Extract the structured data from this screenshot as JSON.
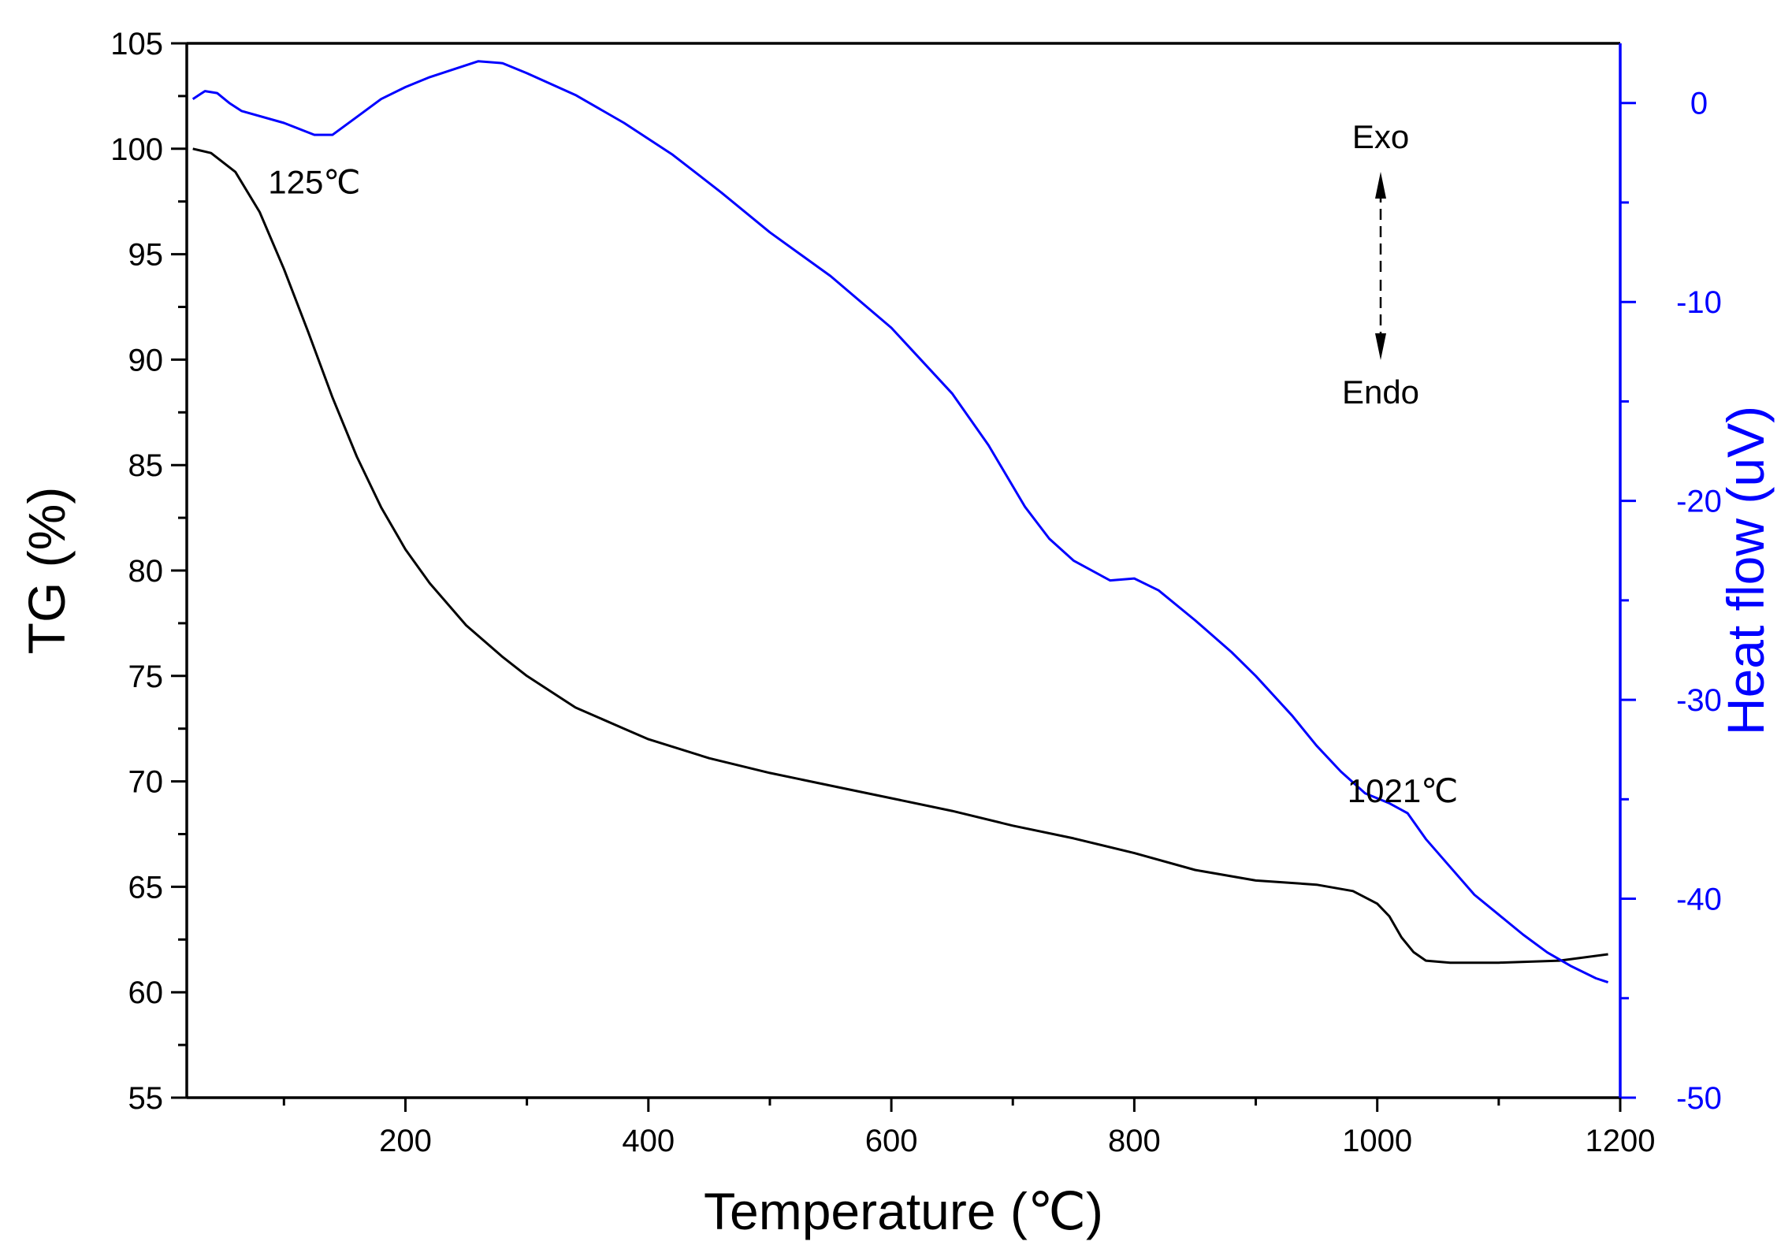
{
  "chart_data": {
    "type": "line",
    "x": {
      "label": "Temperature (℃)",
      "range": [
        20,
        1200
      ],
      "ticks": [
        200,
        400,
        600,
        800,
        1000,
        1200
      ],
      "minor_ticks": [
        100,
        300,
        500,
        700,
        900,
        1100
      ]
    },
    "y_left": {
      "label": "TG (%)",
      "range": [
        55,
        105
      ],
      "ticks": [
        55,
        60,
        65,
        70,
        75,
        80,
        85,
        90,
        95,
        100,
        105
      ]
    },
    "y_right": {
      "label": "Heat flow (uV)",
      "range": [
        -50,
        3
      ],
      "ticks": [
        -50,
        -40,
        -30,
        -20,
        -10,
        0
      ]
    },
    "grid": false,
    "series": [
      {
        "name": "TG",
        "axis": "left",
        "color": "#000000",
        "points": [
          [
            25,
            100
          ],
          [
            40,
            99.8
          ],
          [
            60,
            98.9
          ],
          [
            80,
            97
          ],
          [
            100,
            94.3
          ],
          [
            120,
            91.3
          ],
          [
            140,
            88.2
          ],
          [
            160,
            85.4
          ],
          [
            180,
            83
          ],
          [
            200,
            81
          ],
          [
            220,
            79.4
          ],
          [
            250,
            77.4
          ],
          [
            280,
            75.9
          ],
          [
            300,
            75
          ],
          [
            340,
            73.5
          ],
          [
            380,
            72.5
          ],
          [
            400,
            72
          ],
          [
            450,
            71.1
          ],
          [
            500,
            70.4
          ],
          [
            550,
            69.8
          ],
          [
            600,
            69.2
          ],
          [
            650,
            68.6
          ],
          [
            700,
            67.9
          ],
          [
            750,
            67.3
          ],
          [
            800,
            66.6
          ],
          [
            850,
            65.8
          ],
          [
            900,
            65.3
          ],
          [
            950,
            65.1
          ],
          [
            980,
            64.8
          ],
          [
            1000,
            64.2
          ],
          [
            1010,
            63.6
          ],
          [
            1020,
            62.6
          ],
          [
            1030,
            61.9
          ],
          [
            1040,
            61.5
          ],
          [
            1060,
            61.4
          ],
          [
            1100,
            61.4
          ],
          [
            1150,
            61.5
          ],
          [
            1190,
            61.8
          ]
        ]
      },
      {
        "name": "Heat flow",
        "axis": "right",
        "color": "#0000ff",
        "points": [
          [
            25,
            0.2
          ],
          [
            30,
            0.4
          ],
          [
            35,
            0.6
          ],
          [
            45,
            0.5
          ],
          [
            55,
            0
          ],
          [
            65,
            -0.4
          ],
          [
            100,
            -1
          ],
          [
            125,
            -1.6
          ],
          [
            140,
            -1.6
          ],
          [
            160,
            -0.7
          ],
          [
            180,
            0.2
          ],
          [
            200,
            0.8
          ],
          [
            220,
            1.3
          ],
          [
            240,
            1.7
          ],
          [
            260,
            2.1
          ],
          [
            280,
            2
          ],
          [
            300,
            1.5
          ],
          [
            340,
            0.4
          ],
          [
            380,
            -1
          ],
          [
            420,
            -2.6
          ],
          [
            460,
            -4.5
          ],
          [
            500,
            -6.5
          ],
          [
            550,
            -8.7
          ],
          [
            600,
            -11.3
          ],
          [
            650,
            -14.6
          ],
          [
            680,
            -17.2
          ],
          [
            710,
            -20.3
          ],
          [
            730,
            -21.9
          ],
          [
            750,
            -23
          ],
          [
            780,
            -24
          ],
          [
            800,
            -23.9
          ],
          [
            820,
            -24.5
          ],
          [
            850,
            -26
          ],
          [
            880,
            -27.6
          ],
          [
            900,
            -28.8
          ],
          [
            930,
            -30.8
          ],
          [
            950,
            -32.3
          ],
          [
            970,
            -33.6
          ],
          [
            990,
            -34.7
          ],
          [
            1010,
            -35.2
          ],
          [
            1025,
            -35.7
          ],
          [
            1040,
            -37
          ],
          [
            1060,
            -38.4
          ],
          [
            1080,
            -39.8
          ],
          [
            1100,
            -40.8
          ],
          [
            1120,
            -41.8
          ],
          [
            1140,
            -42.7
          ],
          [
            1160,
            -43.4
          ],
          [
            1180,
            -44
          ],
          [
            1190,
            -44.2
          ]
        ]
      }
    ],
    "annotations": [
      {
        "text": "125℃",
        "at": [
          125,
          -4.0
        ],
        "axis": "right"
      },
      {
        "text": "1021℃",
        "at": [
          1021,
          -34.6
        ],
        "axis": "right"
      }
    ],
    "legend_text": {
      "exo": "Exo",
      "endo": "Endo"
    }
  }
}
